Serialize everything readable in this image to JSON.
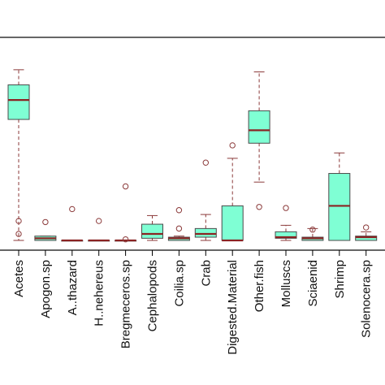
{
  "chart_data": {
    "type": "box",
    "categories": [
      "Acetes",
      "Apogon.sp",
      "A..thazard",
      "H..nehereus",
      "Bregmeceros.sp",
      "Cephalopods",
      "Coilia.sp",
      "Crab",
      "Digested.Material",
      "Other.fish",
      "Molluscs",
      "Sciaenid",
      "Shrimp",
      "Solenocera.sp"
    ],
    "ylim": [
      0,
      100
    ],
    "boxes": [
      {
        "whisker_low": 0,
        "q1": 56,
        "median": 65,
        "q3": 72,
        "whisker_high": 79,
        "outliers": [
          9,
          3
        ]
      },
      {
        "whisker_low": 0,
        "q1": 0,
        "median": 1,
        "q3": 2,
        "whisker_high": 2,
        "outliers": [
          8.5
        ]
      },
      {
        "whisker_low": 0,
        "q1": 0,
        "median": 0,
        "q3": 0,
        "whisker_high": 0,
        "outliers": [
          14.5
        ]
      },
      {
        "whisker_low": 0,
        "q1": 0,
        "median": 0,
        "q3": 0,
        "whisker_high": 0,
        "outliers": [
          9
        ]
      },
      {
        "whisker_low": 0,
        "q1": 0,
        "median": 0,
        "q3": 0,
        "whisker_high": 0,
        "outliers": [
          25,
          0.5
        ]
      },
      {
        "whisker_low": 0,
        "q1": 1,
        "median": 3,
        "q3": 7.5,
        "whisker_high": 11.5,
        "outliers": []
      },
      {
        "whisker_low": 0,
        "q1": 0,
        "median": 1,
        "q3": 1.5,
        "whisker_high": 2,
        "outliers": [
          14,
          5.5
        ]
      },
      {
        "whisker_low": 0,
        "q1": 1.5,
        "median": 3,
        "q3": 5.5,
        "whisker_high": 12,
        "outliers": [
          36
        ]
      },
      {
        "whisker_low": 0,
        "q1": 0,
        "median": 0,
        "q3": 16,
        "whisker_high": 38,
        "outliers": [
          44
        ]
      },
      {
        "whisker_low": 27,
        "q1": 45,
        "median": 51,
        "q3": 60,
        "whisker_high": 78,
        "outliers": [
          15.5
        ]
      },
      {
        "whisker_low": 0,
        "q1": 1,
        "median": 1.5,
        "q3": 4,
        "whisker_high": 7,
        "outliers": [
          15
        ]
      },
      {
        "whisker_low": 0,
        "q1": 0,
        "median": 1,
        "q3": 1.5,
        "whisker_high": 5.5,
        "outliers": [
          5
        ]
      },
      {
        "whisker_low": 0,
        "q1": 0,
        "median": 16,
        "q3": 31,
        "whisker_high": 40.5,
        "outliers": []
      },
      {
        "whisker_low": 0,
        "q1": 0,
        "median": 1.5,
        "q3": 2,
        "whisker_high": 4,
        "outliers": [
          6
        ]
      }
    ],
    "colors": {
      "box_fill": "#7fffd4",
      "median_line": "#8b2323",
      "box_border": "#4a4a4a",
      "whisker": "#8b3a3a",
      "outlier": "#8b3a3a",
      "frame": "#000000"
    }
  }
}
